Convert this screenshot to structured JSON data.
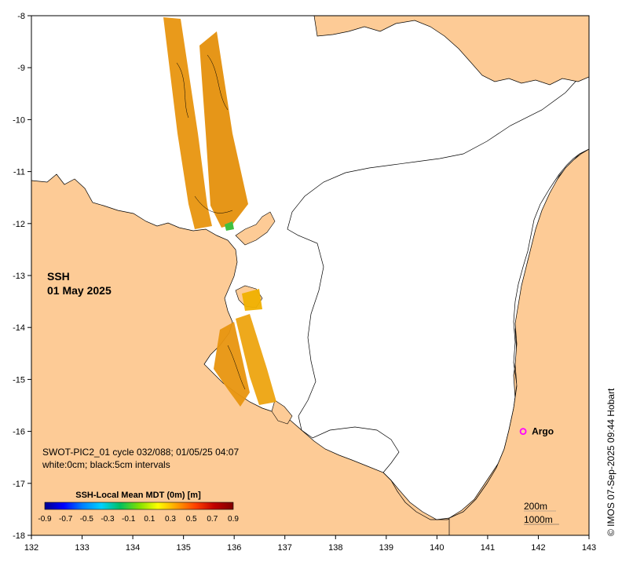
{
  "map": {
    "title_line1": "SSH",
    "title_line2": "01 May 2025",
    "info_line1": "SWOT-PIC2_01 cycle 032/088; 01/05/25 04:07",
    "info_line2": "white:0cm; black:5cm intervals",
    "credit": "© IMOS 07-Sep-2025 09:44 Hobart",
    "x_ticks": [
      "132",
      "133",
      "134",
      "135",
      "136",
      "137",
      "138",
      "139",
      "140",
      "141",
      "142",
      "143"
    ],
    "y_ticks": [
      "-8",
      "-9",
      "-10",
      "-11",
      "-12",
      "-13",
      "-14",
      "-15",
      "-16",
      "-17",
      "-18"
    ],
    "x_range": [
      132,
      143
    ],
    "y_range": [
      -18,
      -8
    ],
    "argo": {
      "label": "Argo",
      "lon": 141.7,
      "lat": -16.0
    },
    "depth_labels": [
      "200m",
      "1000m"
    ],
    "colors": {
      "land": "#fdcb96",
      "ocean": "#ffffff",
      "argo_marker": "#ff00ff",
      "ssh_main": "#e8950f"
    }
  },
  "colorbar": {
    "title": "SSH-Local Mean MDT (0m) [m]",
    "ticks": [
      "-0.9",
      "-0.7",
      "-0.5",
      "-0.3",
      "-0.1",
      "0.1",
      "0.3",
      "0.5",
      "0.7",
      "0.9"
    ],
    "range": [
      -0.9,
      0.9
    ],
    "stops": [
      "#00008f",
      "#0000ff",
      "#0080ff",
      "#00d0ff",
      "#00c060",
      "#80e000",
      "#ffff00",
      "#ffa000",
      "#ff4000",
      "#c00000",
      "#800000"
    ]
  }
}
